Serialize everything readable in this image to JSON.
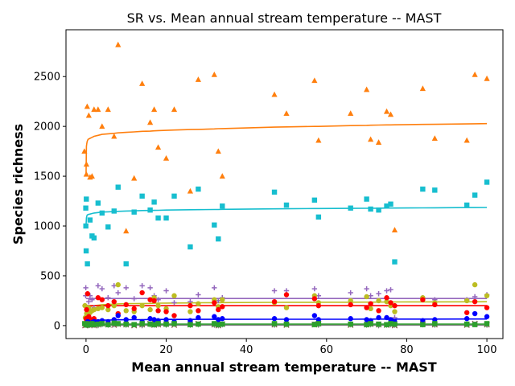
{
  "chart_data": {
    "type": "scatter",
    "title": "SR vs. Mean annual stream temperature -- MAST",
    "xlabel": "Mean annual stream temperature -- MAST",
    "ylabel": "Species richness",
    "xlim": [
      -5,
      104
    ],
    "ylim": [
      -130,
      2970
    ],
    "xticks": [
      0,
      20,
      40,
      60,
      80,
      100
    ],
    "yticks": [
      0,
      500,
      1000,
      1500,
      2000,
      2500
    ],
    "grid": false,
    "legend": "none",
    "x": [
      0,
      0.1,
      0.2,
      0.3,
      0.5,
      1,
      1.5,
      2,
      3,
      4,
      5.5,
      7,
      8,
      10,
      12,
      14,
      16,
      17,
      18,
      20,
      22,
      26,
      28,
      32,
      33,
      34,
      47,
      50,
      57,
      58,
      66,
      70,
      71,
      73,
      75,
      76,
      77,
      84,
      87,
      95,
      97,
      100
    ],
    "series": [
      {
        "marker": "triangle",
        "color": "#ff7f0e",
        "values": [
          2200,
          1750,
          1620,
          2110,
          1520,
          1490,
          1500,
          2170,
          2170,
          2000,
          2170,
          1900,
          2820,
          950,
          1480,
          2430,
          2040,
          2170,
          1790,
          1680,
          2170,
          1350,
          2470,
          2520,
          1750,
          1500,
          2320,
          2130,
          2460,
          1860,
          2130,
          2370,
          1870,
          1840,
          2150,
          2120,
          960,
          2380,
          1880,
          1860,
          2520,
          2480
        ],
        "trend": [
          1500,
          1800,
          1830,
          1850,
          1870,
          1880,
          1890,
          1900,
          1910,
          1920,
          1925,
          1930,
          1935,
          1940,
          1945,
          1950,
          1952,
          1955,
          1958,
          1960,
          1963,
          1968,
          1970,
          1975,
          1977,
          1978,
          1992,
          1995,
          2000,
          2000,
          2008,
          2010,
          2012,
          2013,
          2015,
          2015,
          2016,
          2020,
          2021,
          2025,
          2026,
          2028
        ]
      },
      {
        "marker": "square",
        "color": "#17becf",
        "values": [
          1270,
          1180,
          1000,
          620,
          750,
          1060,
          900,
          880,
          1230,
          1130,
          990,
          1150,
          1390,
          620,
          1140,
          1300,
          1160,
          1240,
          1080,
          1080,
          1300,
          790,
          1370,
          1010,
          870,
          1200,
          1340,
          1210,
          1260,
          1090,
          1180,
          1270,
          1170,
          1160,
          1200,
          1220,
          640,
          1370,
          1360,
          1210,
          1310,
          1440
        ],
        "trend": [
          1000,
          1080,
          1100,
          1110,
          1115,
          1120,
          1125,
          1130,
          1135,
          1140,
          1142,
          1145,
          1147,
          1150,
          1152,
          1155,
          1156,
          1157,
          1158,
          1160,
          1161,
          1163,
          1164,
          1166,
          1166,
          1167,
          1172,
          1173,
          1175,
          1175,
          1177,
          1178,
          1178,
          1179,
          1180,
          1180,
          1180,
          1182,
          1183,
          1185,
          1185,
          1186
        ]
      },
      {
        "marker": "plus",
        "color": "#9467bd",
        "values": [
          380,
          300,
          240,
          200,
          120,
          300,
          260,
          180,
          400,
          370,
          280,
          400,
          330,
          380,
          270,
          400,
          380,
          300,
          260,
          350,
          230,
          240,
          310,
          380,
          250,
          280,
          350,
          350,
          370,
          300,
          330,
          370,
          300,
          320,
          350,
          360,
          80,
          280,
          260,
          260,
          290,
          310
        ],
        "trend": [
          270,
          272,
          272,
          272,
          272,
          272,
          272,
          272,
          272,
          272,
          272,
          272,
          272,
          272,
          272,
          272,
          272,
          272,
          272,
          272,
          272,
          272,
          272,
          272,
          272,
          272,
          272,
          272,
          272,
          272,
          272,
          272,
          272,
          272,
          272,
          272,
          272,
          272,
          272,
          272,
          272,
          272
        ]
      },
      {
        "marker": "circle",
        "color": "#bcbd22",
        "values": [
          200,
          180,
          110,
          80,
          120,
          130,
          150,
          160,
          170,
          180,
          160,
          200,
          410,
          150,
          140,
          200,
          160,
          280,
          200,
          170,
          300,
          140,
          220,
          260,
          190,
          260,
          230,
          180,
          300,
          230,
          250,
          290,
          170,
          250,
          240,
          200,
          140,
          280,
          230,
          250,
          410,
          300
        ],
        "trend": [
          60,
          140,
          160,
          170,
          180,
          190,
          195,
          200,
          205,
          210,
          212,
          215,
          218,
          220,
          221,
          222,
          223,
          224,
          225,
          226,
          227,
          228,
          229,
          230,
          230,
          231,
          233,
          234,
          234,
          235,
          235,
          236,
          236,
          236,
          237,
          237,
          237,
          238,
          238,
          239,
          239,
          240
        ]
      },
      {
        "marker": "circle",
        "color": "#ff0000",
        "values": [
          320,
          160,
          90,
          70,
          60,
          40,
          60,
          70,
          280,
          260,
          200,
          240,
          120,
          210,
          170,
          330,
          260,
          250,
          150,
          140,
          100,
          200,
          150,
          230,
          160,
          190,
          240,
          310,
          270,
          200,
          210,
          180,
          220,
          150,
          280,
          230,
          200,
          260,
          210,
          130,
          240,
          180
        ],
        "trend": [
          200,
          200,
          200,
          200,
          200,
          200,
          200,
          200,
          200,
          200,
          200,
          200,
          200,
          200,
          200,
          200,
          200,
          200,
          200,
          200,
          200,
          200,
          200,
          200,
          200,
          200,
          200,
          200,
          200,
          200,
          200,
          200,
          200,
          200,
          200,
          200,
          200,
          200,
          200,
          200,
          200,
          200
        ]
      },
      {
        "marker": "circle",
        "color": "#0000ff",
        "values": [
          30,
          20,
          40,
          25,
          30,
          20,
          30,
          40,
          40,
          50,
          40,
          60,
          100,
          60,
          80,
          40,
          70,
          60,
          50,
          60,
          40,
          50,
          80,
          90,
          60,
          70,
          70,
          60,
          100,
          60,
          70,
          60,
          50,
          80,
          80,
          60,
          40,
          50,
          60,
          70,
          120,
          90
        ],
        "trend": [
          20,
          35,
          40,
          42,
          45,
          48,
          50,
          52,
          54,
          55,
          56,
          57,
          58,
          59,
          60,
          60,
          61,
          61,
          61,
          62,
          62,
          62,
          63,
          63,
          63,
          63,
          64,
          64,
          64,
          64,
          64,
          65,
          65,
          65,
          65,
          65,
          65,
          65,
          65,
          66,
          66,
          66
        ]
      },
      {
        "marker": "x",
        "color": "#8c564b",
        "values": [
          5,
          10,
          0,
          15,
          20,
          10,
          5,
          0,
          10,
          20,
          10,
          5,
          15,
          10,
          0,
          10,
          20,
          5,
          10,
          15,
          5,
          10,
          20,
          10,
          0,
          15,
          10,
          5,
          10,
          20,
          5,
          10,
          15,
          10,
          5,
          10,
          0,
          15,
          10,
          5,
          20,
          10
        ],
        "trend": [
          10,
          10,
          10,
          10,
          10,
          10,
          10,
          10,
          10,
          10,
          10,
          10,
          10,
          10,
          10,
          10,
          10,
          10,
          10,
          10,
          10,
          10,
          10,
          10,
          10,
          10,
          10,
          10,
          10,
          10,
          10,
          10,
          10,
          10,
          10,
          10,
          10,
          10,
          10,
          10,
          10,
          10
        ]
      },
      {
        "marker": "triangle-down",
        "color": "#7f7f7f",
        "values": [
          10,
          5,
          0,
          10,
          15,
          5,
          10,
          5,
          0,
          10,
          5,
          10,
          15,
          5,
          10,
          0,
          10,
          5,
          10,
          5,
          15,
          5,
          10,
          5,
          0,
          10,
          5,
          10,
          15,
          5,
          10,
          5,
          10,
          0,
          5,
          10,
          5,
          10,
          5,
          10,
          15,
          5
        ],
        "trend": [
          5,
          5,
          5,
          5,
          5,
          5,
          5,
          5,
          5,
          5,
          5,
          5,
          5,
          5,
          5,
          5,
          5,
          5,
          5,
          5,
          5,
          5,
          5,
          5,
          5,
          5,
          5,
          5,
          5,
          5,
          5,
          5,
          5,
          5,
          5,
          5,
          5,
          5,
          5,
          5,
          5,
          5
        ]
      },
      {
        "marker": "square",
        "color": "#2ca02c",
        "values": [
          15,
          10,
          20,
          5,
          10,
          15,
          20,
          10,
          15,
          20,
          10,
          25,
          20,
          15,
          10,
          20,
          15,
          10,
          20,
          15,
          20,
          10,
          15,
          20,
          10,
          15,
          20,
          15,
          10,
          20,
          15,
          10,
          20,
          15,
          10,
          20,
          15,
          10,
          20,
          15,
          10,
          20
        ],
        "trend": [
          15,
          15,
          15,
          15,
          15,
          15,
          15,
          15,
          15,
          15,
          15,
          15,
          15,
          15,
          15,
          15,
          15,
          15,
          15,
          15,
          15,
          15,
          15,
          15,
          15,
          15,
          15,
          15,
          15,
          15,
          15,
          15,
          15,
          15,
          15,
          15,
          15,
          15,
          15,
          15,
          15,
          15
        ]
      }
    ]
  }
}
